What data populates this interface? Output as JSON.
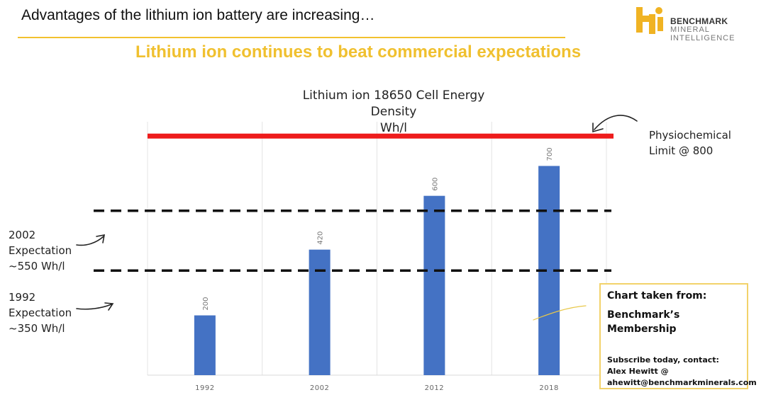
{
  "header": {
    "headline": "Advantages of the lithium ion battery are increasing…",
    "subtitle": "Lithium ion continues to beat commercial expectations"
  },
  "logo": {
    "name": "logo-icon",
    "brand_line1": "BENCHMARK",
    "brand_line2": "MINERAL",
    "brand_line3": "INTELLIGENCE",
    "color": "#f0b323"
  },
  "annotations": {
    "limit_line1": "Physiochemical",
    "limit_line2": "Limit @ 800",
    "exp2002_line1": "2002",
    "exp2002_line2": "Expectation",
    "exp2002_line3": "~550 Wh/l",
    "exp1992_line1": "1992",
    "exp1992_line2": "Expectation",
    "exp1992_line3": "~350 Wh/l"
  },
  "callout": {
    "line1": "Chart taken from:",
    "line2": "Benchmark’s Membership",
    "line3": "Subscribe today, contact:",
    "line4": "Alex Hewitt @",
    "line5": "ahewitt@benchmarkminerals.com"
  },
  "chart_data": {
    "type": "bar",
    "title": "Lithium ion 18650 Cell Energy Density",
    "subtitle": "Wh/l",
    "categories": [
      "1992",
      "2002",
      "2012",
      "2018"
    ],
    "values": [
      200,
      420,
      600,
      700
    ],
    "data_labels": [
      "200",
      "420",
      "600",
      "700"
    ],
    "ylim": [
      0,
      900
    ],
    "grid": "vertical",
    "reference_lines": [
      {
        "value": 800,
        "style": "solid",
        "color": "#ee1c1c"
      },
      {
        "value": 550,
        "style": "dashed",
        "color": "#111111"
      },
      {
        "value": 350,
        "style": "dashed",
        "color": "#111111"
      }
    ],
    "colors": {
      "bar": "#4472c4"
    }
  }
}
